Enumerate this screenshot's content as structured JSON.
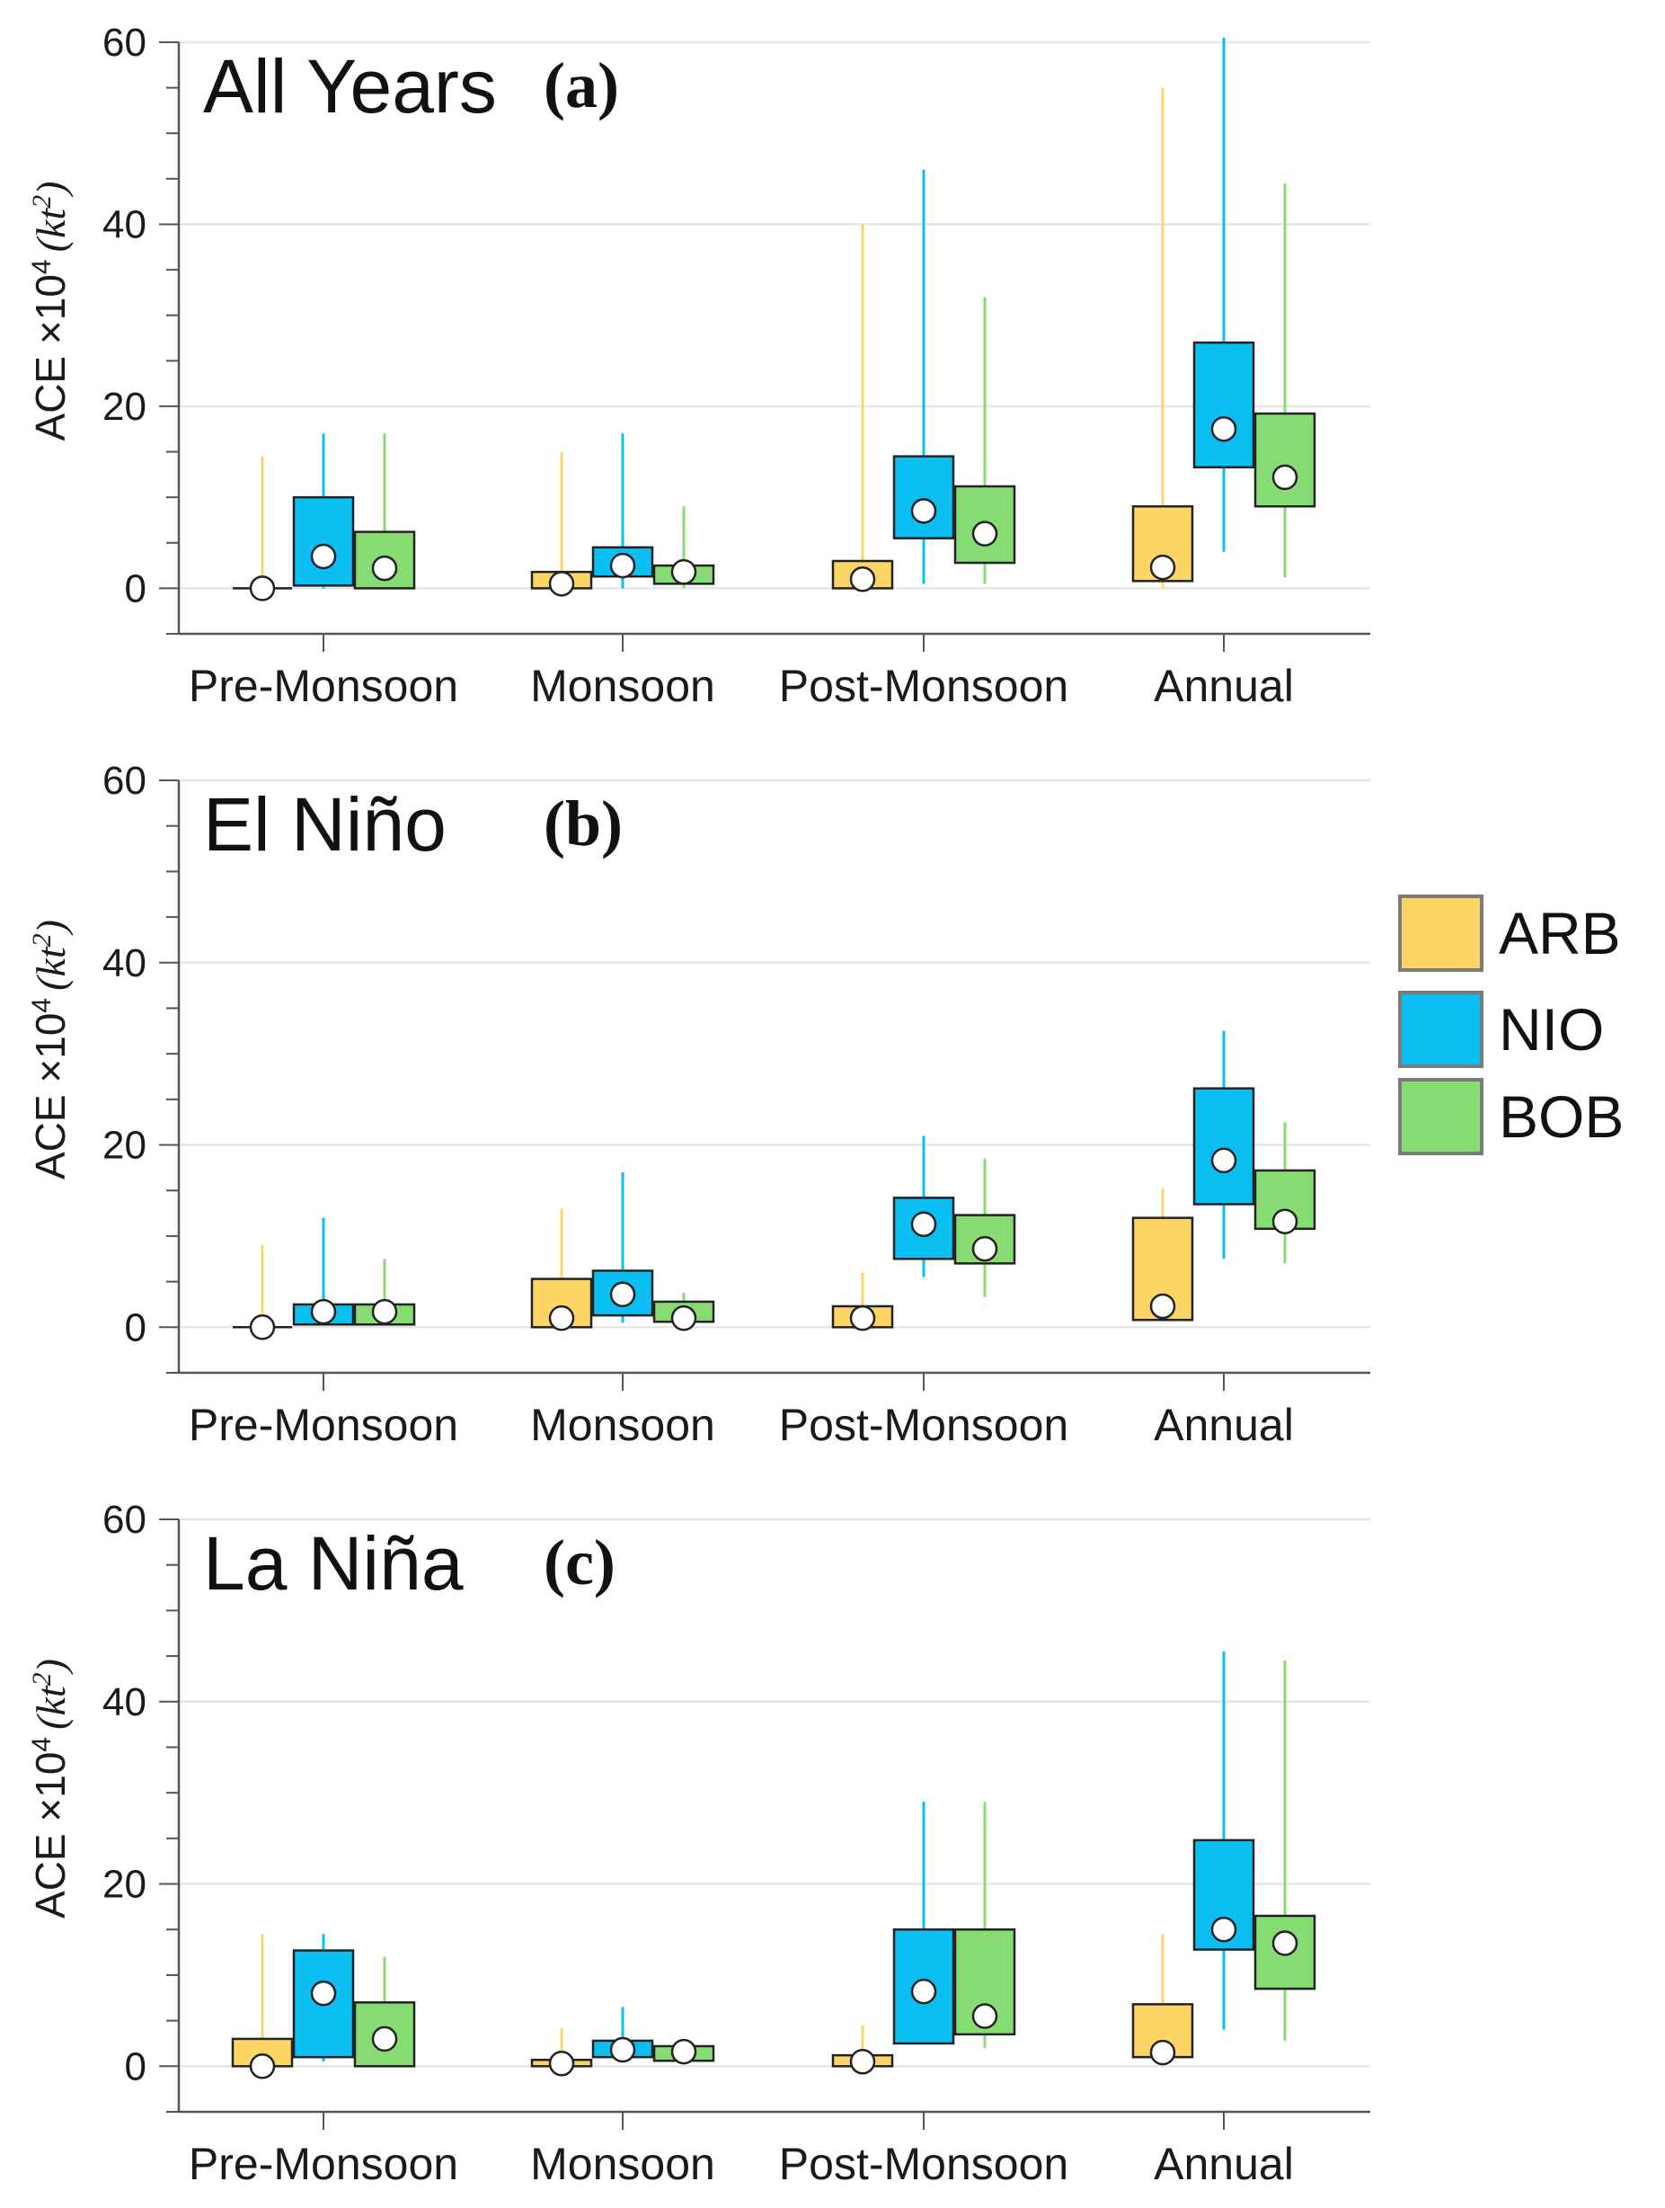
{
  "colors": {
    "ARB": "#FDD565",
    "NIO": "#0BBFF2",
    "BOB": "#86DC73",
    "grid": "#e6e6e6",
    "axis": "#555555"
  },
  "legend": [
    {
      "key": "ARB",
      "label": "ARB"
    },
    {
      "key": "NIO",
      "label": "NIO"
    },
    {
      "key": "BOB",
      "label": "BOB"
    }
  ],
  "chart_data": [
    {
      "type": "box",
      "panel": "a",
      "title": "All Years",
      "letter": "(a)",
      "ylabel": "ACE ×10",
      "ylabel_sup": "4",
      "ylabel_unit_open": "(kt",
      "ylabel_unit_sup": "2",
      "ylabel_unit_close": ")",
      "ylim": [
        -5,
        60
      ],
      "yticks": [
        0,
        20,
        40,
        60
      ],
      "categories": [
        "Pre-Monsoon",
        "Monsoon",
        "Post-Monsoon",
        "Annual"
      ],
      "series": [
        {
          "name": "ARB",
          "whisker_low": [
            0,
            0,
            0,
            0
          ],
          "whisker_high": [
            14.5,
            15,
            40,
            55
          ],
          "q1": [
            0,
            0,
            0,
            0.8
          ],
          "q3": [
            0,
            1.8,
            3,
            9
          ],
          "mean": [
            0,
            0.5,
            1,
            2.3
          ]
        },
        {
          "name": "NIO",
          "whisker_low": [
            0,
            0,
            0.5,
            4
          ],
          "whisker_high": [
            17,
            17,
            46,
            60.5
          ],
          "q1": [
            0.3,
            1.3,
            5.5,
            13.3
          ],
          "q3": [
            10,
            4.5,
            14.5,
            27
          ],
          "mean": [
            3.5,
            2.5,
            8.5,
            17.5
          ]
        },
        {
          "name": "BOB",
          "whisker_low": [
            0,
            0,
            0.5,
            1.2
          ],
          "whisker_high": [
            17,
            9,
            32,
            44.5
          ],
          "q1": [
            0,
            0.5,
            2.8,
            9
          ],
          "q3": [
            6.2,
            2.5,
            11.2,
            19.2
          ],
          "mean": [
            2.2,
            1.8,
            6,
            12.2
          ]
        }
      ]
    },
    {
      "type": "box",
      "panel": "b",
      "title": "El Niño",
      "letter": "(b)",
      "ylabel": "ACE ×10",
      "ylabel_sup": "4",
      "ylabel_unit_open": "(kt",
      "ylabel_unit_sup": "2",
      "ylabel_unit_close": ")",
      "ylim": [
        -5,
        60
      ],
      "yticks": [
        0,
        20,
        40,
        60
      ],
      "categories": [
        "Pre-Monsoon",
        "Monsoon",
        "Post-Monsoon",
        "Annual"
      ],
      "series": [
        {
          "name": "ARB",
          "whisker_low": [
            0,
            0,
            0,
            0.8
          ],
          "whisker_high": [
            9,
            13,
            6,
            15.2
          ],
          "q1": [
            0,
            0,
            0,
            0.8
          ],
          "q3": [
            0,
            5.3,
            2.3,
            12
          ],
          "mean": [
            0,
            1,
            1,
            2.3
          ]
        },
        {
          "name": "NIO",
          "whisker_low": [
            0.5,
            0.5,
            5.5,
            7.5
          ],
          "whisker_high": [
            12,
            17,
            21,
            32.5
          ],
          "q1": [
            0.3,
            1.3,
            7.5,
            13.5
          ],
          "q3": [
            2.5,
            6.2,
            14.2,
            26.2
          ],
          "mean": [
            1.7,
            3.6,
            11.3,
            18.3
          ]
        },
        {
          "name": "BOB",
          "whisker_low": [
            0.3,
            0.3,
            3.3,
            7
          ],
          "whisker_high": [
            7.5,
            3.8,
            18.5,
            22.5
          ],
          "q1": [
            0.3,
            0.6,
            7,
            10.8
          ],
          "q3": [
            2.5,
            2.8,
            12.3,
            17.2
          ],
          "mean": [
            1.7,
            1,
            8.6,
            11.6
          ]
        }
      ]
    },
    {
      "type": "box",
      "panel": "c",
      "title": "La Niña",
      "letter": "(c)",
      "ylabel": "ACE ×10",
      "ylabel_sup": "4",
      "ylabel_unit_open": "(kt",
      "ylabel_unit_sup": "2",
      "ylabel_unit_close": ")",
      "ylim": [
        -5,
        60
      ],
      "yticks": [
        0,
        20,
        40,
        60
      ],
      "categories": [
        "Pre-Monsoon",
        "Monsoon",
        "Post-Monsoon",
        "Annual"
      ],
      "series": [
        {
          "name": "ARB",
          "whisker_low": [
            0,
            0,
            0,
            0.8
          ],
          "whisker_high": [
            14.5,
            4.2,
            4.5,
            14.5
          ],
          "q1": [
            0,
            0,
            0,
            1
          ],
          "q3": [
            3,
            0.7,
            1.2,
            6.8
          ],
          "mean": [
            0,
            0.3,
            0.5,
            1.5
          ]
        },
        {
          "name": "NIO",
          "whisker_low": [
            0.5,
            0.5,
            2.5,
            4
          ],
          "whisker_high": [
            14.5,
            6.5,
            29,
            45.5
          ],
          "q1": [
            1,
            1,
            2.5,
            12.8
          ],
          "q3": [
            12.7,
            2.8,
            15,
            24.8
          ],
          "mean": [
            8,
            1.8,
            8.2,
            15
          ]
        },
        {
          "name": "BOB",
          "whisker_low": [
            0,
            0.6,
            2,
            2.8
          ],
          "whisker_high": [
            12,
            2.2,
            29,
            44.5
          ],
          "q1": [
            0,
            0.6,
            3.5,
            8.5
          ],
          "q3": [
            7,
            2.2,
            15,
            16.5
          ],
          "mean": [
            3,
            1.6,
            5.5,
            13.5
          ]
        }
      ]
    }
  ]
}
